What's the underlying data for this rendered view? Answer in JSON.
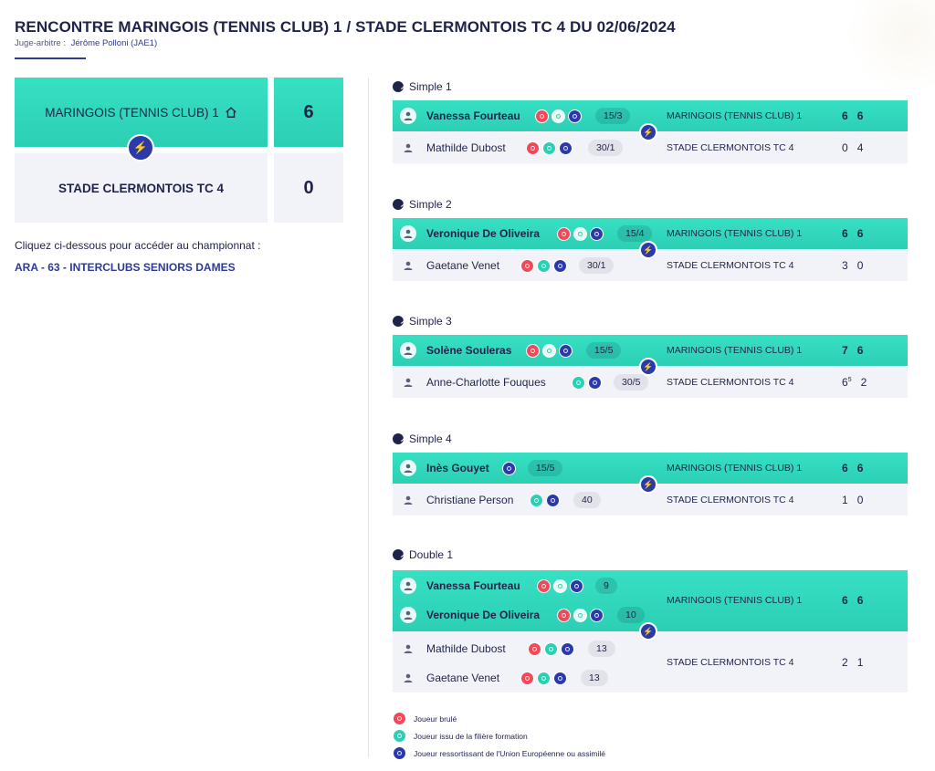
{
  "header": {
    "title": "RENCONTRE MARINGOIS (TENNIS CLUB) 1 / STADE CLERMONTOIS TC 4 DU 02/06/2024",
    "referee_label": "Juge-arbitre :",
    "referee_name": "Jérôme Polloni (JAE1)"
  },
  "scoreboard": {
    "home_team": "MARINGOIS (TENNIS CLUB) 1",
    "home_score": "6",
    "away_team": "STADE CLERMONTOIS TC 4",
    "away_score": "0"
  },
  "championship": {
    "intro": "Cliquez ci-dessous pour accéder au championnat :",
    "link": "ARA - 63 - INTERCLUBS SENIORS DAMES"
  },
  "matches": [
    {
      "title": "Simple 1",
      "winner": {
        "name": "Vanessa Fourteau",
        "rank": "15/3",
        "team": "MARINGOIS (TENNIS CLUB) 1",
        "sets": [
          "6",
          "6"
        ]
      },
      "loser": {
        "name": "Mathilde Dubost",
        "rank": "30/1",
        "team": "STADE CLERMONTOIS TC 4",
        "sets": [
          "0",
          "4"
        ]
      }
    },
    {
      "title": "Simple 2",
      "winner": {
        "name": "Veronique De Oliveira",
        "rank": "15/4",
        "team": "MARINGOIS (TENNIS CLUB) 1",
        "sets": [
          "6",
          "6"
        ]
      },
      "loser": {
        "name": "Gaetane Venet",
        "rank": "30/1",
        "team": "STADE CLERMONTOIS TC 4",
        "sets": [
          "3",
          "0"
        ]
      }
    },
    {
      "title": "Simple 3",
      "winner": {
        "name": "Solène Souleras",
        "rank": "15/5",
        "team": "MARINGOIS (TENNIS CLUB) 1",
        "sets": [
          "7",
          "6"
        ]
      },
      "loser": {
        "name": "Anne-Charlotte Fouques",
        "rank": "30/5",
        "team": "STADE CLERMONTOIS TC 4",
        "sets": [
          "6",
          "2"
        ],
        "tiebreak": "5"
      }
    },
    {
      "title": "Simple 4",
      "winner": {
        "name": "Inès Gouyet",
        "rank": "15/5",
        "team": "MARINGOIS (TENNIS CLUB) 1",
        "sets": [
          "6",
          "6"
        ]
      },
      "loser": {
        "name": "Christiane Person",
        "rank": "40",
        "team": "STADE CLERMONTOIS TC 4",
        "sets": [
          "1",
          "0"
        ]
      }
    }
  ],
  "double": {
    "title": "Double 1",
    "winners": [
      {
        "name": "Vanessa Fourteau",
        "rank": "9"
      },
      {
        "name": "Veronique De Oliveira",
        "rank": "10"
      }
    ],
    "winner_team": "MARINGOIS (TENNIS CLUB) 1",
    "winner_sets": [
      "6",
      "6"
    ],
    "losers": [
      {
        "name": "Mathilde Dubost",
        "rank": "13"
      },
      {
        "name": "Gaetane Venet",
        "rank": "13"
      }
    ],
    "loser_team": "STADE CLERMONTOIS TC 4",
    "loser_sets": [
      "2",
      "1"
    ]
  },
  "legend": {
    "burned": "Joueur brulé",
    "formation": "Joueur issu de la filière formation",
    "eu": "Joueur ressortissant de l'Union Européenne ou assimilé"
  },
  "icons": {
    "bolt": "⚡",
    "burned_color": "#ef4a5a",
    "formation_color": "#2ccfb4",
    "eu_color": "#2b3aa8",
    "accent": "#2ccfb4"
  }
}
